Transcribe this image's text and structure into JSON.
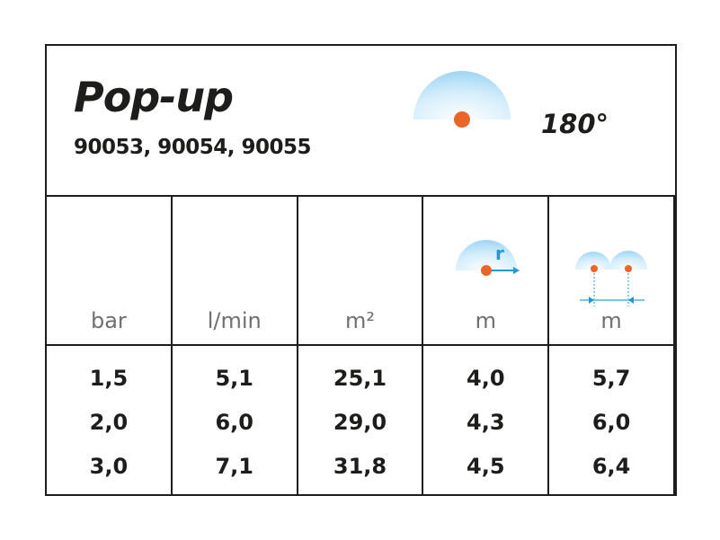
{
  "header": {
    "title": "Pop-up",
    "codes": "90053, 90054, 90055",
    "angle": "180°",
    "icon": "half-circle-spray-pattern-icon"
  },
  "colors": {
    "spray": "#a9dbf5",
    "nozzle": "#e8662a",
    "arrow": "#1e9ad6",
    "border": "#1d1d1b",
    "unit": "#6f6f6e"
  },
  "columns": [
    {
      "unit": "bar",
      "values": [
        "1,5",
        "2,0",
        "3,0"
      ]
    },
    {
      "unit": "l/min",
      "values": [
        "5,1",
        "6,0",
        "7,1"
      ]
    },
    {
      "unit": "m²",
      "values": [
        "25,1",
        "29,0",
        "31,8"
      ]
    },
    {
      "unit": "m",
      "icon": "radius-icon",
      "icon_label": "r",
      "values": [
        "4,0",
        "4,3",
        "4,5"
      ]
    },
    {
      "unit": "m",
      "icon": "spacing-icon",
      "values": [
        "5,7",
        "6,0",
        "6,4"
      ]
    }
  ]
}
